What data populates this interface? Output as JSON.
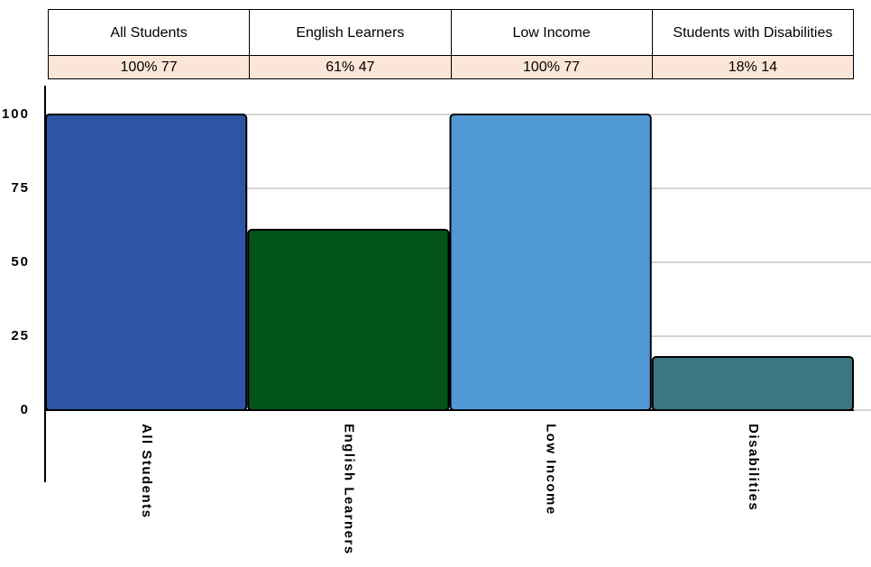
{
  "table": {
    "header": [
      "All Students",
      "English Learners",
      "Low Income",
      "Students with Disabilities"
    ],
    "row": [
      "100%  77",
      "61%  47",
      "100%  77",
      "18%  14"
    ]
  },
  "chart_data": {
    "type": "bar",
    "categories": [
      "All Students",
      "English Learners",
      "Low Income",
      "Disabilities"
    ],
    "values": [
      100,
      61,
      100,
      18
    ],
    "colors": [
      "#2e54a4",
      "#03551b",
      "#5199d4",
      "#3b7780"
    ],
    "ylim": [
      0,
      100
    ],
    "yticks": [
      0,
      25,
      50,
      75,
      100
    ],
    "grid": true
  }
}
